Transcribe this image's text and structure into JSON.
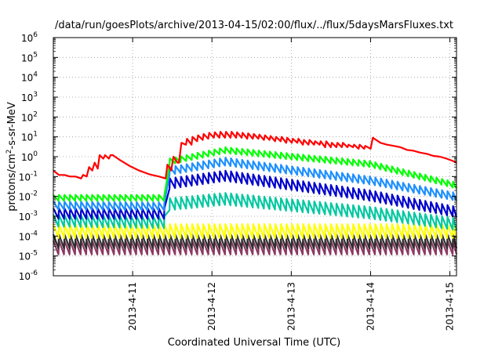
{
  "chart_data": {
    "type": "line",
    "title": "/data/run/goesPlots/archive/2013-04-15/02:00/flux/../flux/5daysMarsFluxes.txt",
    "xlabel": "Coordinated Universal Time (UTC)",
    "ylabel": {
      "base": "protons/cm",
      "sup": "2",
      "rest": "-s-sr-MeV"
    },
    "x_range": [
      "2013-04-10 00:00",
      "2013-04-15 02:00"
    ],
    "x_ticks": [
      "2013-4-11",
      "2013-4-12",
      "2013-4-13",
      "2013-4-14",
      "2013-4-15"
    ],
    "y_scale": "log",
    "ylim": [
      1e-06,
      1000000.0
    ],
    "y_ticks": [
      {
        "base": "10",
        "exp": "-6"
      },
      {
        "base": "10",
        "exp": "-5"
      },
      {
        "base": "10",
        "exp": "-4"
      },
      {
        "base": "10",
        "exp": "-3"
      },
      {
        "base": "10",
        "exp": "-2"
      },
      {
        "base": "10",
        "exp": "-1"
      },
      {
        "base": "10",
        "exp": "0"
      },
      {
        "base": "10",
        "exp": "1"
      },
      {
        "base": "10",
        "exp": "2"
      },
      {
        "base": "10",
        "exp": "3"
      },
      {
        "base": "10",
        "exp": "4"
      },
      {
        "base": "10",
        "exp": "5"
      },
      {
        "base": "10",
        "exp": "6"
      }
    ],
    "grid": true,
    "series": [
      {
        "color": "#ff0000",
        "points": [
          [
            "2013-04-10 00:00",
            0.2
          ],
          [
            "2013-04-10 01:41",
            0.12
          ],
          [
            "2013-04-10 03:22",
            0.12
          ],
          [
            "2013-04-10 05:02",
            0.1
          ],
          [
            "2013-04-10 06:43",
            0.1
          ],
          [
            "2013-04-10 08:24",
            0.08
          ],
          [
            "2013-04-10 09:00",
            0.12
          ],
          [
            "2013-04-10 10:05",
            0.1
          ],
          [
            "2013-04-10 10:50",
            0.3
          ],
          [
            "2013-04-10 11:46",
            0.2
          ],
          [
            "2013-04-10 12:30",
            0.5
          ],
          [
            "2013-04-10 13:26",
            0.25
          ],
          [
            "2013-04-10 14:00",
            1.2
          ],
          [
            "2013-04-10 15:07",
            0.8
          ],
          [
            "2013-04-10 15:40",
            1.2
          ],
          [
            "2013-04-10 16:48",
            0.8
          ],
          [
            "2013-04-10 17:20",
            1.2
          ],
          [
            "2013-04-10 18:00",
            1.2
          ],
          [
            "2013-04-10 20:00",
            0.7
          ],
          [
            "2013-04-10 23:00",
            0.35
          ],
          [
            "2013-04-11 02:00",
            0.2
          ],
          [
            "2013-04-11 05:00",
            0.13
          ],
          [
            "2013-04-11 08:00",
            0.1
          ],
          [
            "2013-04-11 10:00",
            0.08
          ],
          [
            "2013-04-11 10:30",
            0.4
          ],
          [
            "2013-04-11 11:41",
            0.2
          ],
          [
            "2013-04-11 12:20",
            1.0
          ],
          [
            "2013-04-11 13:34",
            0.5
          ],
          [
            "2013-04-11 14:00",
            0.5
          ],
          [
            "2013-04-11 14:45",
            5
          ],
          [
            "2013-04-11 16:08",
            4
          ],
          [
            "2013-04-11 16:26",
            8
          ],
          [
            "2013-04-11 17:49",
            4
          ],
          [
            "2013-04-11 18:07",
            10
          ],
          [
            "2013-04-11 19:30",
            6
          ],
          [
            "2013-04-11 19:48",
            12
          ],
          [
            "2013-04-11 21:11",
            7
          ],
          [
            "2013-04-11 21:29",
            14
          ],
          [
            "2013-04-11 22:52",
            8
          ],
          [
            "2013-04-11 23:10",
            16
          ],
          [
            "2013-04-12 00:34",
            9
          ],
          [
            "2013-04-12 00:52",
            17
          ],
          [
            "2013-04-12 02:15",
            9
          ],
          [
            "2013-04-12 02:33",
            18
          ],
          [
            "2013-04-12 03:56",
            9
          ],
          [
            "2013-04-12 04:14",
            18
          ],
          [
            "2013-04-12 05:37",
            9
          ],
          [
            "2013-04-12 05:55",
            18
          ],
          [
            "2013-04-12 07:18",
            9
          ],
          [
            "2013-04-12 07:36",
            17
          ],
          [
            "2013-04-12 08:59",
            9
          ],
          [
            "2013-04-12 09:17",
            16
          ],
          [
            "2013-04-12 10:40",
            8
          ],
          [
            "2013-04-12 10:58",
            15
          ],
          [
            "2013-04-12 12:22",
            8
          ],
          [
            "2013-04-12 12:40",
            14
          ],
          [
            "2013-04-12 14:03",
            8
          ],
          [
            "2013-04-12 14:21",
            13
          ],
          [
            "2013-04-12 15:44",
            7
          ],
          [
            "2013-04-12 16:02",
            12
          ],
          [
            "2013-04-12 17:25",
            7
          ],
          [
            "2013-04-12 17:43",
            11
          ],
          [
            "2013-04-12 19:06",
            6
          ],
          [
            "2013-04-12 19:24",
            10
          ],
          [
            "2013-04-12 20:47",
            6
          ],
          [
            "2013-04-12 21:05",
            10
          ],
          [
            "2013-04-12 22:28",
            5
          ],
          [
            "2013-04-12 22:46",
            9
          ],
          [
            "2013-04-13 00:10",
            5
          ],
          [
            "2013-04-13 00:28",
            8
          ],
          [
            "2013-04-13 01:51",
            5
          ],
          [
            "2013-04-13 02:09",
            8
          ],
          [
            "2013-04-13 03:32",
            4
          ],
          [
            "2013-04-13 03:50",
            7
          ],
          [
            "2013-04-13 05:13",
            4
          ],
          [
            "2013-04-13 05:31",
            7
          ],
          [
            "2013-04-13 06:54",
            4
          ],
          [
            "2013-04-13 07:12",
            6
          ],
          [
            "2013-04-13 08:35",
            4
          ],
          [
            "2013-04-13 08:53",
            6
          ],
          [
            "2013-04-13 10:16",
            3
          ],
          [
            "2013-04-13 10:34",
            6
          ],
          [
            "2013-04-13 11:58",
            3
          ],
          [
            "2013-04-13 12:16",
            5
          ],
          [
            "2013-04-13 13:39",
            3
          ],
          [
            "2013-04-13 13:57",
            5
          ],
          [
            "2013-04-13 15:20",
            3
          ],
          [
            "2013-04-13 15:38",
            5
          ],
          [
            "2013-04-13 17:01",
            3
          ],
          [
            "2013-04-13 17:19",
            4
          ],
          [
            "2013-04-13 18:42",
            3
          ],
          [
            "2013-04-13 19:00",
            4
          ],
          [
            "2013-04-13 20:23",
            2.5
          ],
          [
            "2013-04-13 20:41",
            4
          ],
          [
            "2013-04-13 22:04",
            2.5
          ],
          [
            "2013-04-13 22:22",
            3.5
          ],
          [
            "2013-04-14 00:00",
            2.5
          ],
          [
            "2013-04-14 00:40",
            9
          ],
          [
            "2013-04-14 03:00",
            5
          ],
          [
            "2013-04-14 05:00",
            4
          ],
          [
            "2013-04-14 07:00",
            3.5
          ],
          [
            "2013-04-14 09:00",
            3
          ],
          [
            "2013-04-14 11:00",
            2.2
          ],
          [
            "2013-04-14 13:00",
            2
          ],
          [
            "2013-04-14 15:00",
            1.6
          ],
          [
            "2013-04-14 17:00",
            1.4
          ],
          [
            "2013-04-14 19:00",
            1.1
          ],
          [
            "2013-04-14 21:00",
            1
          ],
          [
            "2013-04-14 23:00",
            0.8
          ],
          [
            "2013-04-15 01:00",
            0.6
          ],
          [
            "2013-04-15 02:00",
            0.5
          ]
        ]
      },
      {
        "color": "#00ff00",
        "base": [
          [
            0,
            0.012
          ],
          [
            34,
            0.012
          ],
          [
            35,
            0.8
          ],
          [
            52,
            3
          ],
          [
            96,
            0.6
          ],
          [
            122,
            0.05
          ]
        ],
        "period_hours": 1.68,
        "min_ratio": 0.5,
        "start": "2013-04-10 00:00",
        "stop": "2013-04-15 02:00"
      },
      {
        "color": "#1e90ff",
        "base": [
          [
            0,
            0.0055
          ],
          [
            34,
            0.005
          ],
          [
            35,
            0.3
          ],
          [
            52,
            0.9
          ],
          [
            96,
            0.1
          ],
          [
            122,
            0.015
          ]
        ],
        "period_hours": 1.68,
        "min_ratio": 0.4,
        "start": "2013-04-10 00:00",
        "stop": "2013-04-15 02:00"
      },
      {
        "color": "#0000cd",
        "base": [
          [
            0,
            0.0025
          ],
          [
            34,
            0.0025
          ],
          [
            35,
            0.08
          ],
          [
            52,
            0.2
          ],
          [
            96,
            0.02
          ],
          [
            122,
            0.003
          ]
        ],
        "period_hours": 1.68,
        "min_ratio": 0.3,
        "start": "2013-04-10 00:00",
        "stop": "2013-04-15 02:00"
      },
      {
        "color": "#00c8a0",
        "base": [
          [
            0,
            0.0012
          ],
          [
            34,
            0.001
          ],
          [
            35,
            0.008
          ],
          [
            52,
            0.015
          ],
          [
            96,
            0.003
          ],
          [
            122,
            0.0008
          ]
        ],
        "period_hours": 1.68,
        "min_ratio": 0.25,
        "start": "2013-04-10 00:00",
        "stop": "2013-04-15 02:00"
      },
      {
        "color": "#ffff00",
        "base": [
          [
            0,
            0.0004
          ],
          [
            122,
            0.0004
          ]
        ],
        "period_hours": 1.68,
        "min_ratio": 0.2,
        "start": "2013-04-10 00:00",
        "stop": "2013-04-15 02:00"
      },
      {
        "color": "#2f2f2f",
        "base": [
          [
            0,
            0.00012
          ],
          [
            122,
            0.00012
          ]
        ],
        "period_hours": 1.68,
        "min_ratio": 0.2,
        "start": "2013-04-10 00:00",
        "stop": "2013-04-15 02:00"
      },
      {
        "color": "#8b3a62",
        "base": [
          [
            0,
            6e-05
          ],
          [
            122,
            6e-05
          ]
        ],
        "period_hours": 1.68,
        "min_ratio": 0.2,
        "start": "2013-04-10 00:00",
        "stop": "2013-04-15 02:00"
      }
    ]
  }
}
